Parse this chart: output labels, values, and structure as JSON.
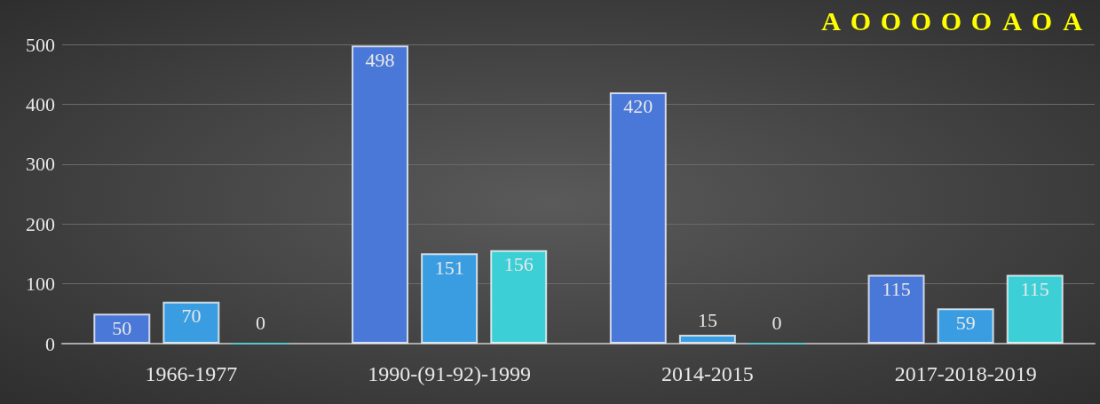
{
  "chart_data": {
    "type": "bar",
    "categories": [
      "1966-1977",
      "1990-(91-92)-1999",
      "2014-2015",
      "2017-2018-2019"
    ],
    "series": [
      {
        "color": "#4a78d8",
        "values": [
          50,
          498,
          420,
          115
        ]
      },
      {
        "color": "#3a9de2",
        "values": [
          70,
          151,
          15,
          59
        ]
      },
      {
        "color": "#3ccfd6",
        "values": [
          0,
          156,
          0,
          115
        ]
      }
    ],
    "ylim": [
      0,
      500
    ],
    "yticks": [
      0,
      100,
      200,
      300,
      400,
      500
    ],
    "grid": "y",
    "data_labels": true,
    "annotations": [
      "A",
      "O",
      "O",
      "O",
      "O",
      "O",
      "A",
      "O",
      "A"
    ]
  }
}
